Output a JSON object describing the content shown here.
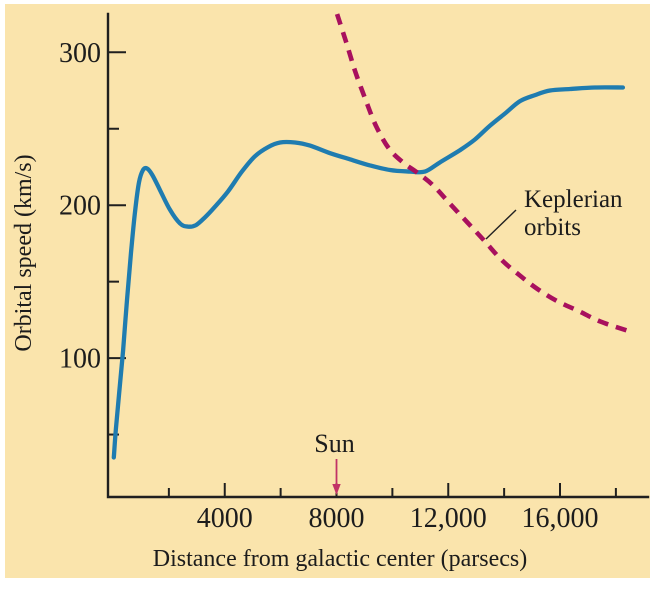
{
  "figure": {
    "background_color": "#ffffff",
    "panel_color": "#fae4ac"
  },
  "chart_data": {
    "type": "line",
    "title": "",
    "xlabel": "Distance from galactic center (parsecs)",
    "ylabel": "Orbital speed (km/s)",
    "xlim": [
      0,
      19150
    ],
    "ylim": [
      0,
      325
    ],
    "grid": false,
    "legend_position": "none",
    "x_ticks_major": {
      "values": [
        4000,
        8000,
        12000,
        16000
      ],
      "labels": [
        "4000",
        "8000",
        "12,000",
        "16,000"
      ]
    },
    "x_ticks_minor": [
      2000,
      6000,
      10000,
      14000,
      18000
    ],
    "y_ticks_major": {
      "values": [
        100,
        200,
        300
      ],
      "labels": [
        "100",
        "200",
        "300"
      ]
    },
    "y_ticks_minor": [
      50,
      150,
      250
    ],
    "colors": {
      "axis": "#1f1f1f",
      "text": "#1c1c1c",
      "rotation_curve": "#1f7cb0",
      "keplerian_curve": "#a8105e",
      "sun_arrow": "#c13366",
      "pointer_line": "#222222"
    },
    "series": [
      {
        "name": "Galactic rotation curve",
        "style": "solid",
        "color": "#1f7cb0",
        "points": [
          [
            30,
            35
          ],
          [
            100,
            53
          ],
          [
            215,
            76
          ],
          [
            360,
            105
          ],
          [
            500,
            138
          ],
          [
            645,
            169
          ],
          [
            790,
            196
          ],
          [
            930,
            215
          ],
          [
            1075,
            223
          ],
          [
            1220,
            224
          ],
          [
            1400,
            220
          ],
          [
            1680,
            210
          ],
          [
            2040,
            197
          ],
          [
            2400,
            188
          ],
          [
            2685,
            186
          ],
          [
            2970,
            187
          ],
          [
            3290,
            192
          ],
          [
            3650,
            199
          ],
          [
            4115,
            209
          ],
          [
            4615,
            222
          ],
          [
            5080,
            232
          ],
          [
            5550,
            238
          ],
          [
            5980,
            241
          ],
          [
            6515,
            241
          ],
          [
            7050,
            239
          ],
          [
            7770,
            234
          ],
          [
            8480,
            230
          ],
          [
            9200,
            226
          ],
          [
            9915,
            223
          ],
          [
            10630,
            222
          ],
          [
            11165,
            222
          ],
          [
            11700,
            228
          ],
          [
            12420,
            236
          ],
          [
            12955,
            243
          ],
          [
            13490,
            252
          ],
          [
            14030,
            260
          ],
          [
            14565,
            268
          ],
          [
            15105,
            272
          ],
          [
            15640,
            275
          ],
          [
            16360,
            276
          ],
          [
            17250,
            277
          ],
          [
            18250,
            277
          ]
        ]
      },
      {
        "name": "Keplerian orbits",
        "style": "dashed",
        "color": "#a8105e",
        "points": [
          [
            8020,
            325
          ],
          [
            8340,
            307
          ],
          [
            8660,
            288
          ],
          [
            9020,
            270
          ],
          [
            9410,
            252
          ],
          [
            9880,
            237
          ],
          [
            10380,
            228
          ],
          [
            10915,
            221
          ],
          [
            11455,
            213
          ],
          [
            12060,
            201
          ],
          [
            12670,
            189
          ],
          [
            13280,
            177
          ],
          [
            13920,
            164
          ],
          [
            14565,
            154
          ],
          [
            15210,
            145
          ],
          [
            15925,
            137
          ],
          [
            16645,
            131
          ],
          [
            17430,
            124
          ],
          [
            18400,
            118
          ]
        ]
      }
    ],
    "annotations": {
      "sun": {
        "label": "Sun",
        "x": 8000
      },
      "keplerian": {
        "line1": "Keplerian",
        "line2": "orbits"
      }
    }
  }
}
